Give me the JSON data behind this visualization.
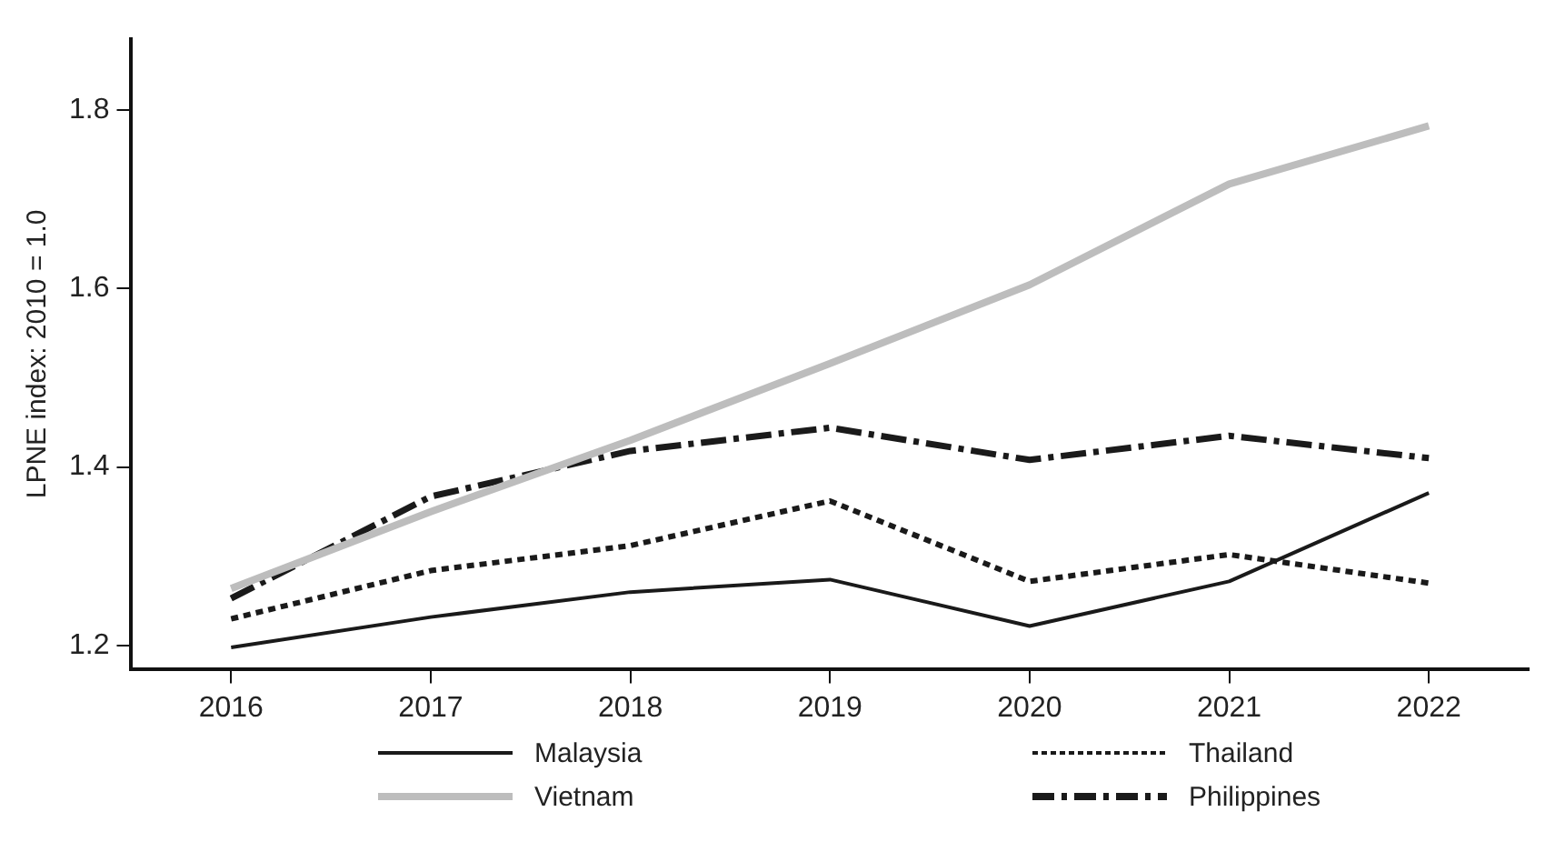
{
  "chart_data": {
    "type": "line",
    "ylabel": "LPNE index: 2010 = 1.0",
    "categories": [
      "2016",
      "2017",
      "2018",
      "2019",
      "2020",
      "2021",
      "2022"
    ],
    "series": [
      {
        "name": "Malaysia",
        "color": "#1a1a1a",
        "line_style": "solid",
        "values": [
          1.198,
          1.232,
          1.26,
          1.274,
          1.222,
          1.272,
          1.371
        ]
      },
      {
        "name": "Thailand",
        "color": "#1a1a1a",
        "line_style": "dotted",
        "values": [
          1.23,
          1.284,
          1.312,
          1.362,
          1.272,
          1.302,
          1.27
        ]
      },
      {
        "name": "Vietnam",
        "color": "#bdbdbd",
        "line_style": "solid",
        "values": [
          1.264,
          1.35,
          1.43,
          1.516,
          1.604,
          1.717,
          1.782
        ]
      },
      {
        "name": "Philippines",
        "color": "#1a1a1a",
        "line_style": "dashed",
        "values": [
          1.253,
          1.367,
          1.418,
          1.444,
          1.408,
          1.435,
          1.41
        ]
      }
    ],
    "ylim": [
      1.174,
      1.879
    ],
    "yticks": [
      1.2,
      1.4,
      1.6,
      1.8
    ],
    "grid": false,
    "legend": "bottom",
    "marker": "none"
  }
}
